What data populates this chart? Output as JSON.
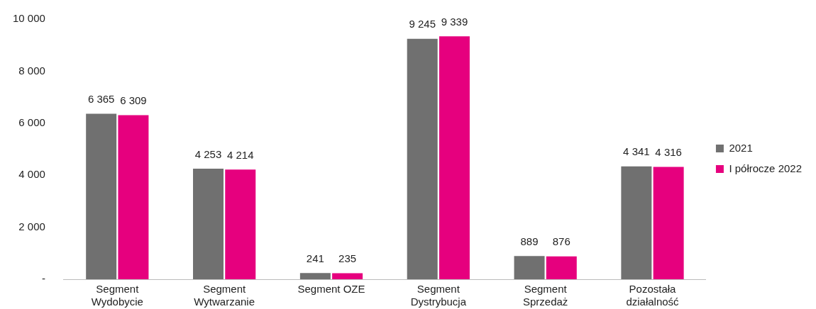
{
  "chart_data": {
    "type": "bar",
    "categories": [
      "Segment Wydobycie",
      "Segment Wytwarzanie",
      "Segment OZE",
      "Segment Dystrybucja",
      "Segment Sprzedaż",
      "Pozostała działalność"
    ],
    "series": [
      {
        "name": "2021",
        "color": "#707070",
        "values": [
          6365,
          4253,
          241,
          9245,
          889,
          4341
        ],
        "value_labels": [
          "6 365",
          "4 253",
          "241",
          "9 245",
          "889",
          "4 341"
        ]
      },
      {
        "name": "I półrocze 2022",
        "color": "#e6007e",
        "values": [
          6309,
          4214,
          235,
          9339,
          876,
          4316
        ],
        "value_labels": [
          "6 309",
          "4 214",
          "235",
          "9 339",
          "876",
          "4 316"
        ]
      }
    ],
    "ylim": [
      0,
      10000
    ],
    "yticks": [
      {
        "value": 0,
        "label": "-"
      },
      {
        "value": 2000,
        "label": "2 000"
      },
      {
        "value": 4000,
        "label": "4 000"
      },
      {
        "value": 6000,
        "label": "6 000"
      },
      {
        "value": 8000,
        "label": "8 000"
      },
      {
        "value": 10000,
        "label": "10 000"
      }
    ],
    "grid": false,
    "legend": "right"
  }
}
